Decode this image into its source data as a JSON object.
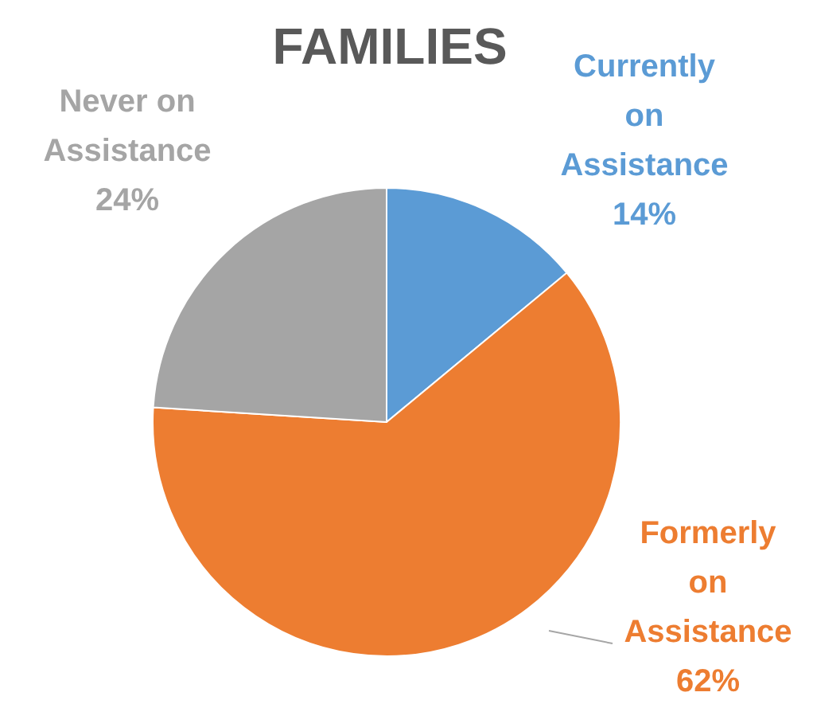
{
  "chart_data": {
    "type": "pie",
    "title": "FAMILIES",
    "categories": [
      "Currently on Assistance",
      "Formerly on Assistance",
      "Never on Assistance"
    ],
    "values": [
      14,
      62,
      24
    ],
    "value_labels": [
      "14%",
      "62%",
      "24%"
    ],
    "colors": [
      "#5b9bd5",
      "#ed7d31",
      "#a5a5a5"
    ]
  }
}
